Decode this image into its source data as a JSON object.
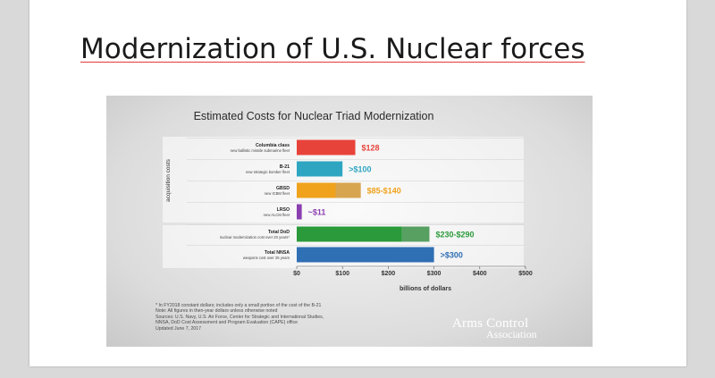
{
  "slide": {
    "title": "Modernization of U.S. Nuclear forces"
  },
  "figure": {
    "notes": [
      "* In FY2018 constant dollars; includes only a small portion of the cost of the B-21",
      "Note: All figures in then-year dollars unless otherwise noted",
      "Sources: U.S. Navy, U.S. Air Force, Center for Strategic and International Studies,",
      "NNSA, DoD Cost Assessment and Program Evaluation (CAPE) office",
      "Updated June 7, 2017"
    ],
    "logo": {
      "line1": "Arms Control",
      "line2": "Association"
    }
  },
  "chart_data": {
    "type": "bar",
    "orientation": "horizontal",
    "title": "Estimated Costs for Nuclear Triad Modernization",
    "xlabel": "billions of dollars",
    "group_label": "acquisition costs",
    "xlim": [
      0,
      500
    ],
    "x_ticks": [
      0,
      100,
      200,
      300,
      400,
      500
    ],
    "x_tick_labels": [
      "$0",
      "$100",
      "$200",
      "$300",
      "$400",
      "$500"
    ],
    "categories": [
      {
        "name": "Columbia class",
        "sub": "new ballistic missile submarine fleet",
        "value": 128,
        "range": [
          128,
          128
        ],
        "label": "$128",
        "color": "#e8433a",
        "group": "acquisition"
      },
      {
        "name": "B-21",
        "sub": "new strategic bomber fleet",
        "value": 100,
        "range": [
          100,
          100
        ],
        "label": ">$100",
        "color": "#2ea6c2",
        "group": "acquisition"
      },
      {
        "name": "GBSD",
        "sub": "new ICBM fleet",
        "value": 140,
        "range": [
          85,
          140
        ],
        "label": "$85-$140",
        "color": "#f0a21c",
        "group": "acquisition"
      },
      {
        "name": "LRSO",
        "sub": "new ALCM fleet",
        "value": 11,
        "range": [
          11,
          11
        ],
        "label": "~$11",
        "color": "#8a3fb0",
        "group": "acquisition"
      },
      {
        "name": "Total DoD",
        "sub": "nuclear modernization cost over 20 years*",
        "value": 290,
        "range": [
          230,
          290
        ],
        "label": "$230-$290",
        "color": "#2a9a3a",
        "group": "total"
      },
      {
        "name": "Total NNSA",
        "sub": "weapons cost over 25 years",
        "value": 300,
        "range": [
          300,
          300
        ],
        "label": ">$300",
        "color": "#2f6fb3",
        "group": "total"
      }
    ],
    "grid": false,
    "legend": "none"
  }
}
